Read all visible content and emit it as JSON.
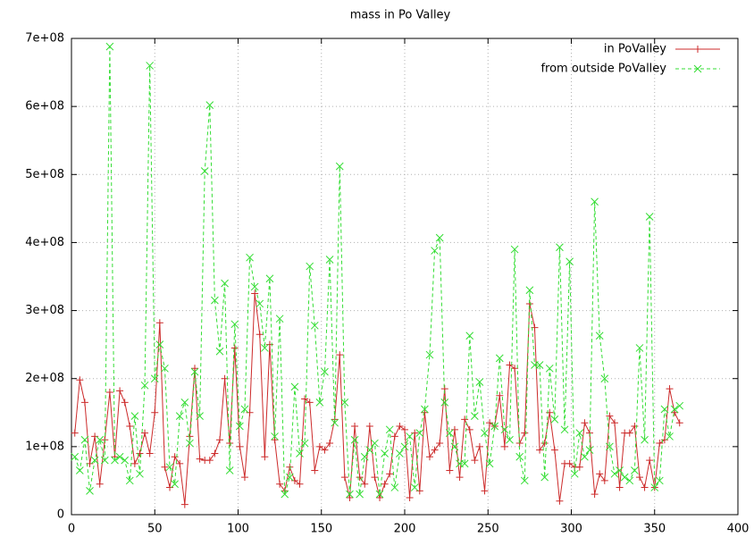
{
  "chart_data": {
    "type": "line",
    "title": "mass in Po Valley",
    "x": [
      2,
      5,
      8,
      11,
      14,
      17,
      20,
      23,
      26,
      29,
      32,
      35,
      38,
      41,
      44,
      47,
      50,
      53,
      56,
      59,
      62,
      65,
      68,
      71,
      74,
      77,
      80,
      83,
      86,
      89,
      92,
      95,
      98,
      101,
      104,
      107,
      110,
      113,
      116,
      119,
      122,
      125,
      128,
      131,
      134,
      137,
      140,
      143,
      146,
      149,
      152,
      155,
      158,
      161,
      164,
      167,
      170,
      173,
      176,
      179,
      182,
      185,
      188,
      191,
      194,
      197,
      200,
      203,
      206,
      209,
      212,
      215,
      218,
      221,
      224,
      227,
      230,
      233,
      236,
      239,
      242,
      245,
      248,
      251,
      254,
      257,
      260,
      263,
      266,
      269,
      272,
      275,
      278,
      281,
      284,
      287,
      290,
      293,
      296,
      299,
      302,
      305,
      308,
      311,
      314,
      317,
      320,
      323,
      326,
      329,
      332,
      335,
      338,
      341,
      344,
      347,
      350,
      353,
      356,
      359,
      362,
      365
    ],
    "series": [
      {
        "name": "in PoValley",
        "color": "#cc2a2a",
        "marker": "+",
        "dash": false,
        "values": [
          120000000.0,
          198000000.0,
          165000000.0,
          75000000.0,
          115000000.0,
          45000000.0,
          110000000.0,
          180000000.0,
          85000000.0,
          182000000.0,
          165000000.0,
          130000000.0,
          75000000.0,
          90000000.0,
          120000000.0,
          90000000.0,
          150000000.0,
          282000000.0,
          70000000.0,
          40000000.0,
          85000000.0,
          75000000.0,
          15000000.0,
          115000000.0,
          215000000.0,
          82000000.0,
          80000000.0,
          80000000.0,
          90000000.0,
          110000000.0,
          200000000.0,
          105000000.0,
          245000000.0,
          100000000.0,
          55000000.0,
          150000000.0,
          325000000.0,
          265000000.0,
          85000000.0,
          250000000.0,
          110000000.0,
          45000000.0,
          35000000.0,
          70000000.0,
          50000000.0,
          45000000.0,
          170000000.0,
          165000000.0,
          65000000.0,
          100000000.0,
          95000000.0,
          105000000.0,
          140000000.0,
          235000000.0,
          55000000.0,
          25000000.0,
          130000000.0,
          55000000.0,
          45000000.0,
          130000000.0,
          55000000.0,
          25000000.0,
          45000000.0,
          60000000.0,
          115000000.0,
          130000000.0,
          125000000.0,
          25000000.0,
          120000000.0,
          35000000.0,
          150000000.0,
          85000000.0,
          95000000.0,
          105000000.0,
          185000000.0,
          65000000.0,
          125000000.0,
          55000000.0,
          140000000.0,
          125000000.0,
          80000000.0,
          100000000.0,
          35000000.0,
          135000000.0,
          130000000.0,
          175000000.0,
          100000000.0,
          220000000.0,
          215000000.0,
          105000000.0,
          120000000.0,
          310000000.0,
          275000000.0,
          95000000.0,
          105000000.0,
          150000000.0,
          95000000.0,
          20000000.0,
          75000000.0,
          75000000.0,
          70000000.0,
          70000000.0,
          135000000.0,
          120000000.0,
          30000000.0,
          60000000.0,
          50000000.0,
          145000000.0,
          135000000.0,
          40000000.0,
          120000000.0,
          120000000.0,
          130000000.0,
          55000000.0,
          40000000.0,
          80000000.0,
          40000000.0,
          105000000.0,
          110000000.0,
          185000000.0,
          150000000.0,
          135000000.0
        ]
      },
      {
        "name": "from outside PoValley",
        "color": "#33dd33",
        "marker": "x",
        "dash": true,
        "values": [
          85000000.0,
          65000000.0,
          110000000.0,
          35000000.0,
          80000000.0,
          110000000.0,
          80000000.0,
          688000000.0,
          80000000.0,
          85000000.0,
          80000000.0,
          50000000.0,
          145000000.0,
          60000000.0,
          190000000.0,
          660000000.0,
          200000000.0,
          250000000.0,
          215000000.0,
          70000000.0,
          45000000.0,
          145000000.0,
          165000000.0,
          105000000.0,
          210000000.0,
          145000000.0,
          505000000.0,
          602000000.0,
          315000000.0,
          240000000.0,
          340000000.0,
          65000000.0,
          280000000.0,
          130000000.0,
          155000000.0,
          378000000.0,
          335000000.0,
          310000000.0,
          245000000.0,
          347000000.0,
          115000000.0,
          288000000.0,
          30000000.0,
          55000000.0,
          188000000.0,
          90000000.0,
          105000000.0,
          365000000.0,
          278000000.0,
          165000000.0,
          210000000.0,
          375000000.0,
          135000000.0,
          512000000.0,
          165000000.0,
          30000000.0,
          110000000.0,
          30000000.0,
          85000000.0,
          95000000.0,
          105000000.0,
          30000000.0,
          90000000.0,
          125000000.0,
          40000000.0,
          90000000.0,
          100000000.0,
          115000000.0,
          40000000.0,
          120000000.0,
          155000000.0,
          235000000.0,
          388000000.0,
          407000000.0,
          165000000.0,
          120000000.0,
          100000000.0,
          75000000.0,
          75000000.0,
          263000000.0,
          145000000.0,
          195000000.0,
          120000000.0,
          75000000.0,
          130000000.0,
          230000000.0,
          125000000.0,
          110000000.0,
          390000000.0,
          85000000.0,
          50000000.0,
          330000000.0,
          220000000.0,
          220000000.0,
          55000000.0,
          215000000.0,
          140000000.0,
          393000000.0,
          125000000.0,
          372000000.0,
          60000000.0,
          120000000.0,
          85000000.0,
          95000000.0,
          460000000.0,
          263000000.0,
          200000000.0,
          100000000.0,
          60000000.0,
          65000000.0,
          55000000.0,
          50000000.0,
          65000000.0,
          245000000.0,
          110000000.0,
          438000000.0,
          40000000.0,
          50000000.0,
          155000000.0,
          115000000.0,
          155000000.0,
          160000000.0
        ]
      }
    ],
    "xlim": [
      0,
      400
    ],
    "xticks": [
      0,
      50,
      100,
      150,
      200,
      250,
      300,
      350,
      400
    ],
    "ylim": [
      0,
      700000000
    ],
    "yticks": [
      0,
      {
        "value": 100000000,
        "label": "1e+08"
      },
      {
        "value": 200000000,
        "label": "2e+08"
      },
      {
        "value": 300000000,
        "label": "3e+08"
      },
      {
        "value": 400000000,
        "label": "4e+08"
      },
      {
        "value": 500000000,
        "label": "5e+08"
      },
      {
        "value": 600000000,
        "label": "6e+08"
      },
      {
        "value": 700000000,
        "label": "7e+08"
      }
    ],
    "grid": true,
    "legend": "top-right"
  }
}
